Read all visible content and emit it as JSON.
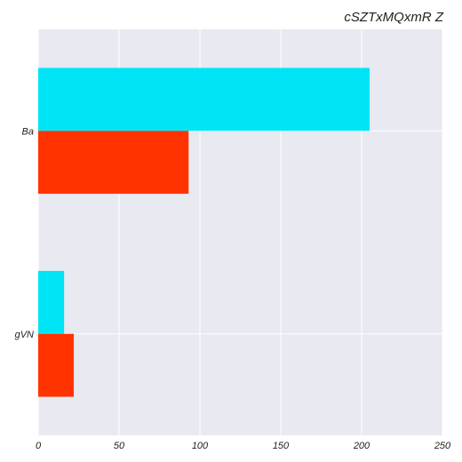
{
  "chart_data": {
    "type": "bar",
    "orientation": "horizontal",
    "title": "cSZTxMQxmR Z",
    "xlabel": "",
    "ylabel": "",
    "categories": [
      "Ba",
      "gVN"
    ],
    "series": [
      {
        "color": "#00e5f5",
        "values": [
          205,
          16
        ]
      },
      {
        "color": "#ff3300",
        "values": [
          93,
          22
        ]
      }
    ],
    "xlim": [
      0,
      250
    ],
    "xticks": [
      "0",
      "50",
      "100",
      "150",
      "200",
      "250"
    ],
    "grid": true,
    "legend": "none",
    "colors": {
      "plot_background": "#e9e9f1",
      "grid": "#ffffff"
    }
  }
}
